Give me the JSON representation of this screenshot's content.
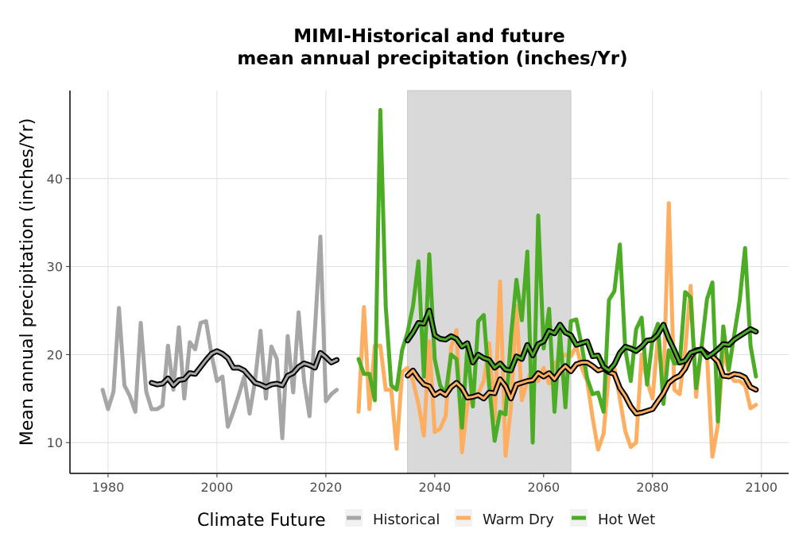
{
  "chart_data": {
    "type": "line",
    "title_lines": [
      "MIMI-Historical and future",
      "mean annual precipitation (inches/Yr)"
    ],
    "xlabel": "",
    "ylabel": "Mean annual precipitation (inches/Yr)",
    "xlim": [
      1973,
      2105
    ],
    "ylim": [
      6.5,
      50
    ],
    "x_ticks": [
      1980,
      2000,
      2020,
      2040,
      2060,
      2080,
      2100
    ],
    "y_ticks": [
      10,
      20,
      30,
      40
    ],
    "grid": true,
    "shaded_period": [
      2035,
      2065
    ],
    "shade_color": "#d9d9d9",
    "legend": {
      "title": "Climate Future",
      "placement": "bottom",
      "entries": [
        {
          "label": "Historical",
          "color": "#a6a6a6"
        },
        {
          "label": "Warm Dry",
          "color": "#fdae61"
        },
        {
          "label": "Hot Wet",
          "color": "#4dac26"
        }
      ]
    },
    "series": [
      {
        "name": "Historical",
        "color": "#a6a6a6",
        "kind": "annual",
        "x": [
          1979,
          1980,
          1981,
          1982,
          1983,
          1984,
          1985,
          1986,
          1987,
          1988,
          1989,
          1990,
          1991,
          1992,
          1993,
          1994,
          1995,
          1996,
          1997,
          1998,
          1999,
          2000,
          2001,
          2002,
          2003,
          2004,
          2005,
          2006,
          2007,
          2008,
          2009,
          2010,
          2011,
          2012,
          2013,
          2014,
          2015,
          2016,
          2017,
          2018,
          2019,
          2020,
          2021,
          2022
        ],
        "y": [
          16,
          13.8,
          15.8,
          25.3,
          16.5,
          15.3,
          13.5,
          23.6,
          15.8,
          13.8,
          13.8,
          14.2,
          21,
          16,
          23.1,
          15,
          21.4,
          20.6,
          23.6,
          23.8,
          20,
          17,
          17.5,
          11.8,
          13.5,
          15.4,
          17.5,
          13.3,
          17,
          22.7,
          15,
          20.9,
          19.5,
          10.5,
          22.1,
          15.7,
          24.8,
          17,
          13,
          22.9,
          33.4,
          14.7,
          15.5,
          16
        ]
      },
      {
        "name": "Historical",
        "color": "#a6a6a6",
        "kind": "smoothed",
        "x": [
          1988,
          1989,
          1990,
          1991,
          1992,
          1993,
          1994,
          1995,
          1996,
          1997,
          1998,
          1999,
          2000,
          2001,
          2002,
          2003,
          2004,
          2005,
          2006,
          2007,
          2008,
          2009,
          2010,
          2011,
          2012,
          2013,
          2014,
          2015,
          2016,
          2017,
          2018,
          2019,
          2020,
          2021,
          2022
        ],
        "y": [
          16.8,
          16.6,
          16.7,
          17.3,
          16.5,
          17.1,
          17.2,
          17.9,
          17.8,
          18.6,
          19.4,
          20.1,
          20.4,
          20.1,
          19.6,
          18.5,
          18.5,
          18.2,
          17.5,
          16.8,
          16.6,
          16.3,
          16.6,
          16.7,
          16.5,
          17.6,
          17.9,
          18.6,
          19,
          18.8,
          18.5,
          20.2,
          19.7,
          19.1,
          19.4
        ]
      },
      {
        "name": "Warm Dry",
        "color": "#fdae61",
        "kind": "annual",
        "x": [
          2026,
          2027,
          2028,
          2029,
          2030,
          2031,
          2032,
          2033,
          2034,
          2035,
          2036,
          2037,
          2038,
          2039,
          2040,
          2041,
          2042,
          2043,
          2044,
          2045,
          2046,
          2047,
          2048,
          2049,
          2050,
          2051,
          2052,
          2053,
          2054,
          2055,
          2056,
          2057,
          2058,
          2059,
          2060,
          2061,
          2062,
          2063,
          2064,
          2065,
          2066,
          2067,
          2068,
          2069,
          2070,
          2071,
          2072,
          2073,
          2074,
          2075,
          2076,
          2077,
          2078,
          2079,
          2080,
          2081,
          2082,
          2083,
          2084,
          2085,
          2086,
          2087,
          2088,
          2089,
          2090,
          2091,
          2092,
          2093,
          2094,
          2095,
          2096,
          2097,
          2098,
          2099
        ],
        "y": [
          13.5,
          25.4,
          13.8,
          21,
          21,
          16,
          16,
          9.3,
          18,
          18.5,
          17,
          14.4,
          10.8,
          21.5,
          11.2,
          11.6,
          13,
          20.8,
          22.8,
          8.9,
          14.3,
          15.2,
          15.6,
          17,
          21.3,
          12.5,
          28.3,
          8.5,
          14,
          25.5,
          14.8,
          17,
          18.5,
          17,
          18.5,
          16.7,
          19,
          19.5,
          20,
          19.8,
          21,
          18.5,
          17,
          12.8,
          9.2,
          11,
          18,
          18.5,
          15,
          11.3,
          9.5,
          10,
          20,
          17,
          15,
          22,
          16,
          37.2,
          16,
          15.5,
          20.5,
          27.8,
          15.2,
          21,
          20,
          8.4,
          12,
          20.5,
          18,
          17,
          17,
          16.5,
          13.9,
          14.3
        ]
      },
      {
        "name": "Warm Dry",
        "color": "#fdae61",
        "kind": "smoothed",
        "x": [
          2035,
          2036,
          2037,
          2038,
          2039,
          2040,
          2041,
          2042,
          2043,
          2044,
          2045,
          2046,
          2047,
          2048,
          2049,
          2050,
          2051,
          2052,
          2053,
          2054,
          2055,
          2056,
          2057,
          2058,
          2059,
          2060,
          2061,
          2062,
          2063,
          2064,
          2065,
          2066,
          2067,
          2068,
          2069,
          2070,
          2071,
          2072,
          2073,
          2074,
          2075,
          2076,
          2077,
          2078,
          2079,
          2080,
          2081,
          2082,
          2083,
          2084,
          2085,
          2086,
          2087,
          2088,
          2089,
          2090,
          2091,
          2092,
          2093,
          2094,
          2095,
          2096,
          2097,
          2098,
          2099
        ],
        "y": [
          17.6,
          18.2,
          17.3,
          16.6,
          16.4,
          15.4,
          15.8,
          15.4,
          16.3,
          16.8,
          16.2,
          15.1,
          15.2,
          15.4,
          15,
          15.7,
          15.6,
          17.2,
          16.4,
          15,
          16.6,
          16.8,
          17,
          17.1,
          17.9,
          17.5,
          17.9,
          17.2,
          18.1,
          18.7,
          18.1,
          18.9,
          19.1,
          19.1,
          18.7,
          18.2,
          18.4,
          18,
          17.8,
          16.2,
          15.3,
          14.1,
          13.3,
          13.4,
          13.6,
          13.8,
          14.7,
          15.6,
          16.8,
          17.3,
          17.6,
          18.4,
          19.8,
          20.5,
          20.6,
          20.1,
          19.8,
          19.2,
          17.6,
          17.5,
          17.8,
          17.7,
          17.4,
          16.3,
          16
        ]
      },
      {
        "name": "Hot Wet",
        "color": "#4dac26",
        "kind": "annual",
        "x": [
          2026,
          2027,
          2028,
          2029,
          2030,
          2031,
          2032,
          2033,
          2034,
          2035,
          2036,
          2037,
          2038,
          2039,
          2040,
          2041,
          2042,
          2043,
          2044,
          2045,
          2046,
          2047,
          2048,
          2049,
          2050,
          2051,
          2052,
          2053,
          2054,
          2055,
          2056,
          2057,
          2058,
          2059,
          2060,
          2061,
          2062,
          2063,
          2064,
          2065,
          2066,
          2067,
          2068,
          2069,
          2070,
          2071,
          2072,
          2073,
          2074,
          2075,
          2076,
          2077,
          2078,
          2079,
          2080,
          2081,
          2082,
          2083,
          2084,
          2085,
          2086,
          2087,
          2088,
          2089,
          2090,
          2091,
          2092,
          2093,
          2094,
          2095,
          2096,
          2097,
          2098,
          2099
        ],
        "y": [
          19.5,
          17.8,
          17.8,
          14.8,
          47.8,
          25.5,
          16.5,
          16,
          20.5,
          22.5,
          25.5,
          30.6,
          17.5,
          31.4,
          19.5,
          16.5,
          15.5,
          20,
          19.5,
          11.7,
          20.9,
          14.1,
          23.8,
          24.5,
          16.5,
          10.2,
          13.5,
          13.2,
          22,
          28.5,
          23.9,
          31.7,
          10,
          35.8,
          20.7,
          25.2,
          13.5,
          22.5,
          14,
          23.8,
          24,
          21,
          17.3,
          15.5,
          15.7,
          13.5,
          26.2,
          27.2,
          32.5,
          20.6,
          17,
          22.9,
          24.2,
          16.6,
          21.8,
          23.5,
          14.4,
          20.5,
          19,
          19,
          27.1,
          26.5,
          16.2,
          20.8,
          26.3,
          28.2,
          12.4,
          23.2,
          18.3,
          22.2,
          26.1,
          32.1,
          21,
          17.5
        ]
      },
      {
        "name": "Hot Wet",
        "color": "#4dac26",
        "kind": "smoothed",
        "x": [
          2035,
          2036,
          2037,
          2038,
          2039,
          2040,
          2041,
          2042,
          2043,
          2044,
          2045,
          2046,
          2047,
          2048,
          2049,
          2050,
          2051,
          2052,
          2053,
          2054,
          2055,
          2056,
          2057,
          2058,
          2059,
          2060,
          2061,
          2062,
          2063,
          2064,
          2065,
          2066,
          2067,
          2068,
          2069,
          2070,
          2071,
          2072,
          2073,
          2074,
          2075,
          2076,
          2077,
          2078,
          2079,
          2080,
          2081,
          2082,
          2083,
          2084,
          2085,
          2086,
          2087,
          2088,
          2089,
          2090,
          2091,
          2092,
          2093,
          2094,
          2095,
          2096,
          2097,
          2098,
          2099
        ],
        "y": [
          21.6,
          22.5,
          23.6,
          23.5,
          25,
          22.2,
          21.8,
          21.7,
          22.1,
          21.8,
          20.9,
          21.3,
          19.1,
          20,
          19.6,
          19.4,
          18.5,
          19,
          18.3,
          18.2,
          19.8,
          19.5,
          21.1,
          19.9,
          21.2,
          21.5,
          22.7,
          22.4,
          23.4,
          22.5,
          22.2,
          21.1,
          21.3,
          21.5,
          19.8,
          19.9,
          18.6,
          18.2,
          18.9,
          20.2,
          20.9,
          20.7,
          20.4,
          20.9,
          21.6,
          21.7,
          22.3,
          23.4,
          21.8,
          20.5,
          19.1,
          19.3,
          20.2,
          20.4,
          20.6,
          19.7,
          20.1,
          20.6,
          21.2,
          21.1,
          21.7,
          22.1,
          22.5,
          22.9,
          22.6
        ]
      }
    ]
  }
}
